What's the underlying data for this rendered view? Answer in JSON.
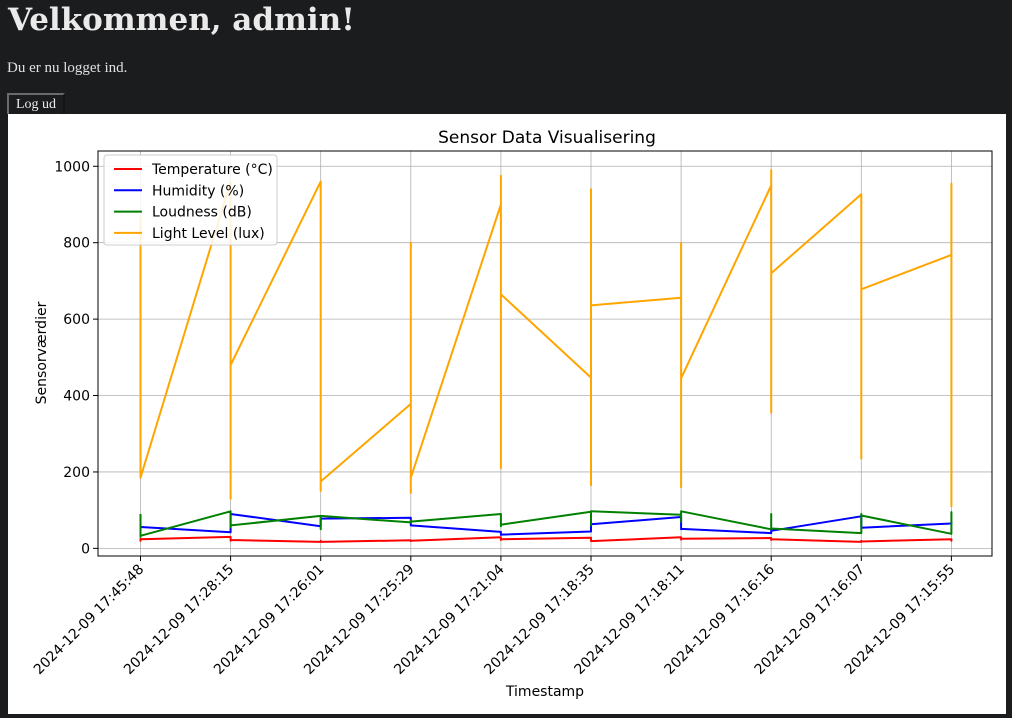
{
  "header": {
    "title": "Velkommen, admin!",
    "subtitle": "Du er nu logget ind.",
    "logout_label": "Log ud"
  },
  "chart_data": {
    "type": "line",
    "title": "Sensor Data Visualisering",
    "xlabel": "Timestamp",
    "ylabel": "Sensorværdier",
    "ylim": [
      -20,
      1040
    ],
    "yticks": [
      0,
      200,
      400,
      600,
      800,
      1000
    ],
    "grid": true,
    "legend_position": "top-left",
    "categories": [
      "2024-12-09 17:45:48",
      "2024-12-09 17:28:15",
      "2024-12-09 17:26:01",
      "2024-12-09 17:25:29",
      "2024-12-09 17:21:04",
      "2024-12-09 17:18:35",
      "2024-12-09 17:18:11",
      "2024-12-09 17:16:16",
      "2024-12-09 17:16:07",
      "2024-12-09 17:15:55"
    ],
    "series": [
      {
        "name": "Temperature (°C)",
        "color": "#ff0000",
        "points": [
          [
            0,
            27
          ],
          [
            0,
            20
          ],
          [
            0,
            24
          ],
          [
            1,
            30
          ],
          [
            1,
            20
          ],
          [
            1,
            22
          ],
          [
            2,
            17
          ],
          [
            2,
            20
          ],
          [
            2,
            17
          ],
          [
            3,
            21
          ],
          [
            3,
            19
          ],
          [
            3,
            20
          ],
          [
            4,
            29
          ],
          [
            4,
            22
          ],
          [
            4,
            24
          ],
          [
            5,
            28
          ],
          [
            5,
            20
          ],
          [
            5,
            19
          ],
          [
            6,
            29
          ],
          [
            6,
            23
          ],
          [
            6,
            25
          ],
          [
            7,
            27
          ],
          [
            7,
            22
          ],
          [
            7,
            24
          ],
          [
            8,
            17
          ],
          [
            8,
            20
          ],
          [
            8,
            18
          ],
          [
            9,
            24
          ],
          [
            9,
            20
          ],
          [
            9,
            25
          ]
        ]
      },
      {
        "name": "Humidity (%)",
        "color": "#0000ff",
        "points": [
          [
            0,
            58
          ],
          [
            0,
            55
          ],
          [
            0,
            56
          ],
          [
            1,
            42
          ],
          [
            1,
            88
          ],
          [
            1,
            90
          ],
          [
            2,
            58
          ],
          [
            2,
            80
          ],
          [
            2,
            78
          ],
          [
            3,
            80
          ],
          [
            3,
            62
          ],
          [
            3,
            60
          ],
          [
            4,
            43
          ],
          [
            4,
            35
          ],
          [
            4,
            36
          ],
          [
            5,
            44
          ],
          [
            5,
            62
          ],
          [
            5,
            63
          ],
          [
            6,
            82
          ],
          [
            6,
            50
          ],
          [
            6,
            51
          ],
          [
            7,
            40
          ],
          [
            7,
            48
          ],
          [
            7,
            46
          ],
          [
            8,
            84
          ],
          [
            8,
            52
          ],
          [
            8,
            54
          ],
          [
            9,
            65
          ],
          [
            9,
            68
          ],
          [
            9,
            66
          ]
        ]
      },
      {
        "name": "Loudness (dB)",
        "color": "#008000",
        "points": [
          [
            0,
            90
          ],
          [
            0,
            30
          ],
          [
            0,
            33
          ],
          [
            1,
            97
          ],
          [
            1,
            55
          ],
          [
            1,
            60
          ],
          [
            2,
            85
          ],
          [
            2,
            50
          ],
          [
            2,
            85
          ],
          [
            3,
            68
          ],
          [
            3,
            72
          ],
          [
            3,
            70
          ],
          [
            4,
            90
          ],
          [
            4,
            58
          ],
          [
            4,
            62
          ],
          [
            5,
            96
          ],
          [
            5,
            60
          ],
          [
            5,
            97
          ],
          [
            6,
            88
          ],
          [
            6,
            70
          ],
          [
            6,
            97
          ],
          [
            7,
            50
          ],
          [
            7,
            90
          ],
          [
            7,
            52
          ],
          [
            8,
            40
          ],
          [
            8,
            90
          ],
          [
            8,
            86
          ],
          [
            9,
            38
          ],
          [
            9,
            95
          ],
          [
            9,
            40
          ]
        ]
      },
      {
        "name": "Light Level (lux)",
        "color": "#ffa500",
        "points": [
          [
            0,
            870
          ],
          [
            0,
            205
          ],
          [
            0,
            185
          ],
          [
            1,
            960
          ],
          [
            1,
            130
          ],
          [
            1,
            480
          ],
          [
            2,
            960
          ],
          [
            2,
            150
          ],
          [
            2,
            175
          ],
          [
            3,
            378
          ],
          [
            3,
            800
          ],
          [
            3,
            145
          ],
          [
            3,
            185
          ],
          [
            4,
            900
          ],
          [
            4,
            975
          ],
          [
            4,
            210
          ],
          [
            4,
            665
          ],
          [
            5,
            447
          ],
          [
            5,
            940
          ],
          [
            5,
            165
          ],
          [
            5,
            636
          ],
          [
            6,
            656
          ],
          [
            6,
            800
          ],
          [
            6,
            160
          ],
          [
            6,
            445
          ],
          [
            7,
            950
          ],
          [
            7,
            990
          ],
          [
            7,
            355
          ],
          [
            7,
            720
          ],
          [
            8,
            927
          ],
          [
            8,
            235
          ],
          [
            8,
            678
          ],
          [
            9,
            768
          ],
          [
            9,
            955
          ],
          [
            9,
            110
          ],
          [
            9,
            955
          ]
        ]
      }
    ]
  }
}
